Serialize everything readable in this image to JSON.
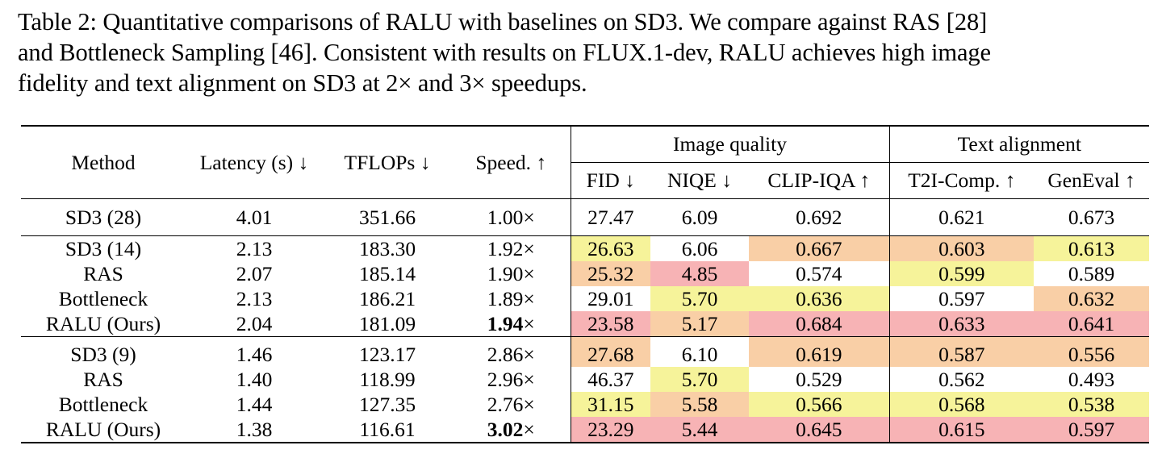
{
  "caption": {
    "line1": "Table 2: Quantitative comparisons of RALU with baselines on SD3. We compare against RAS [28]",
    "line2": "and Bottleneck Sampling [46]. Consistent with results on FLUX.1-dev, RALU achieves high image",
    "line3": "fidelity and text alignment on SD3 at 2× and 3× speedups."
  },
  "header": {
    "method": "Method",
    "latency": "Latency (s) ↓",
    "tflops": "TFLOPs ↓",
    "speed": "Speed. ↑",
    "group_image_quality": "Image quality",
    "group_text_alignment": "Text alignment",
    "fid": "FID ↓",
    "niqe": "NIQE ↓",
    "clipiqa": "CLIP-IQA ↑",
    "t2i": "T2I-Comp. ↑",
    "geneval": "GenEval ↑"
  },
  "colors": {
    "best": "#f7b3b5",
    "second": "#f9cfa6",
    "third": "#f6f39a"
  },
  "rows": [
    {
      "method": "SD3 (28)",
      "latency": "4.01",
      "tflops": "351.66",
      "speed": "1.00×",
      "fid": "27.47",
      "niqe": "6.09",
      "clipiqa": "0.692",
      "t2i": "0.621",
      "geneval": "0.673"
    },
    {
      "method": "SD3 (14)",
      "latency": "2.13",
      "tflops": "183.30",
      "speed": "1.92×",
      "fid": "26.63",
      "niqe": "6.06",
      "clipiqa": "0.667",
      "t2i": "0.603",
      "geneval": "0.613"
    },
    {
      "method": "RAS",
      "latency": "2.07",
      "tflops": "185.14",
      "speed": "1.90×",
      "fid": "25.32",
      "niqe": "4.85",
      "clipiqa": "0.574",
      "t2i": "0.599",
      "geneval": "0.589"
    },
    {
      "method": "Bottleneck",
      "latency": "2.13",
      "tflops": "186.21",
      "speed": "1.89×",
      "fid": "29.01",
      "niqe": "5.70",
      "clipiqa": "0.636",
      "t2i": "0.597",
      "geneval": "0.632"
    },
    {
      "method": "RALU (Ours)",
      "latency": "2.04",
      "tflops": "181.09",
      "speed_num": "1.94",
      "speed_x": "×",
      "fid": "23.58",
      "niqe": "5.17",
      "clipiqa": "0.684",
      "t2i": "0.633",
      "geneval": "0.641"
    },
    {
      "method": "SD3 (9)",
      "latency": "1.46",
      "tflops": "123.17",
      "speed": "2.86×",
      "fid": "27.68",
      "niqe": "6.10",
      "clipiqa": "0.619",
      "t2i": "0.587",
      "geneval": "0.556"
    },
    {
      "method": "RAS",
      "latency": "1.40",
      "tflops": "118.99",
      "speed": "2.96×",
      "fid": "46.37",
      "niqe": "5.70",
      "clipiqa": "0.529",
      "t2i": "0.562",
      "geneval": "0.493"
    },
    {
      "method": "Bottleneck",
      "latency": "1.44",
      "tflops": "127.35",
      "speed": "2.76×",
      "fid": "31.15",
      "niqe": "5.58",
      "clipiqa": "0.566",
      "t2i": "0.568",
      "geneval": "0.538"
    },
    {
      "method": "RALU (Ours)",
      "latency": "1.38",
      "tflops": "116.61",
      "speed_num": "3.02",
      "speed_x": "×",
      "fid": "23.29",
      "niqe": "5.44",
      "clipiqa": "0.645",
      "t2i": "0.615",
      "geneval": "0.597"
    }
  ]
}
